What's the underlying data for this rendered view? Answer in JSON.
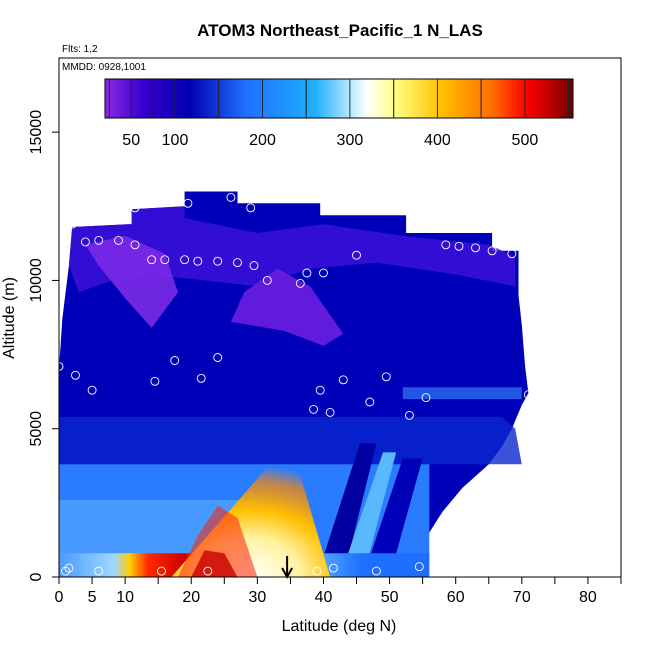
{
  "chart_data": {
    "type": "heatmap",
    "title": "ATOM3 Northeast_Pacific_1 N_LAS",
    "flights_label": "Flts: 1,2",
    "date_label": "MMDD: 0928,1001",
    "xlabel": "Latitude (deg N)",
    "ylabel": "Altitude (m)",
    "xlim": [
      0,
      85
    ],
    "ylim": [
      0,
      17500
    ],
    "x_ticks": [
      0,
      5,
      10,
      20,
      30,
      40,
      50,
      60,
      70,
      80
    ],
    "x_minor_ticks": [
      15,
      25,
      35,
      45,
      55,
      65,
      75,
      85
    ],
    "y_ticks": [
      0,
      5000,
      10000,
      15000
    ],
    "colorbar": {
      "min": 20,
      "max": 555,
      "ticks": [
        50,
        100,
        200,
        300,
        400,
        500
      ],
      "colors": [
        "#8a2be2",
        "#0000b0",
        "#1f6fff",
        "#1eb0ff",
        "#ffffff",
        "#ffff66",
        "#ffa500",
        "#ff0000",
        "#6b0000"
      ]
    },
    "arrow_latitude": 34.5,
    "flight_points": [
      [
        0,
        7100
      ],
      [
        1,
        200
      ],
      [
        1.5,
        300
      ],
      [
        2,
        11900
      ],
      [
        2.5,
        6800
      ],
      [
        4,
        11300
      ],
      [
        5,
        6300
      ],
      [
        6,
        11350
      ],
      [
        6,
        200
      ],
      [
        9,
        11350
      ],
      [
        11.5,
        11200
      ],
      [
        11.5,
        12450
      ],
      [
        14,
        10700
      ],
      [
        14.5,
        6600
      ],
      [
        15.5,
        200
      ],
      [
        16,
        10700
      ],
      [
        17.5,
        7300
      ],
      [
        19,
        10700
      ],
      [
        19.5,
        12600
      ],
      [
        21,
        10650
      ],
      [
        21.5,
        6700
      ],
      [
        22.5,
        200
      ],
      [
        24,
        10650
      ],
      [
        24,
        7400
      ],
      [
        26,
        12800
      ],
      [
        27,
        10600
      ],
      [
        29,
        12450
      ],
      [
        29.5,
        10500
      ],
      [
        31.5,
        10000
      ],
      [
        36.5,
        9900
      ],
      [
        37.5,
        10250
      ],
      [
        38.5,
        5650
      ],
      [
        39,
        200
      ],
      [
        39.5,
        6300
      ],
      [
        40,
        10250
      ],
      [
        41,
        5550
      ],
      [
        41.5,
        300
      ],
      [
        43,
        6650
      ],
      [
        45,
        10850
      ],
      [
        47,
        5900
      ],
      [
        48,
        200
      ],
      [
        49.5,
        6750
      ],
      [
        53,
        5450
      ],
      [
        54.5,
        350
      ],
      [
        55.5,
        6050
      ],
      [
        58.5,
        11200
      ],
      [
        60.5,
        11150
      ],
      [
        63,
        11100
      ],
      [
        65.5,
        11000
      ],
      [
        68.5,
        10900
      ],
      [
        71,
        6150
      ]
    ]
  }
}
